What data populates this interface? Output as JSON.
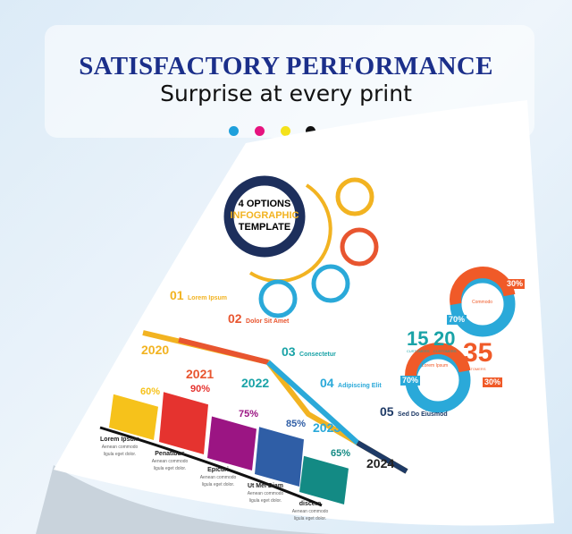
{
  "banner": {
    "title": "SATISFACTORY PERFORMANCE",
    "subtitle": "Surprise at every print",
    "ink_dots": [
      "#1ea0dc",
      "#e6137f",
      "#f4e21b",
      "#111111"
    ]
  },
  "infographic": {
    "badge": {
      "line1": "4 OPTIONS",
      "line2": "INFOGRAPHIC",
      "line3": "TEMPLATE"
    },
    "option_icons": [
      "magnifier-icon",
      "house-icon",
      "calendar-icon",
      "chart-icon"
    ],
    "timeline": [
      {
        "num": "01",
        "title": "Lorem Ipsum",
        "year": "2020",
        "color": "#f2b321"
      },
      {
        "num": "02",
        "title": "Dolor Sit Amet",
        "year": "2021",
        "color": "#e8552f"
      },
      {
        "num": "03",
        "title": "Consectetur",
        "year": "2022",
        "color": "#1aa3a7"
      },
      {
        "num": "04",
        "title": "Adipiscing Elit",
        "year": "2023",
        "color": "#2aa9d9"
      },
      {
        "num": "05",
        "title": "Sed Do Eiusmod",
        "year": "2024",
        "color": "#1e3a66"
      }
    ],
    "bars": [
      {
        "label": "Lorem Ipsum",
        "sub": "Aenean commodo ligula eget dolor.",
        "value": 60,
        "text": "60%",
        "color": "#f6c21b"
      },
      {
        "label": "Penatibus",
        "sub": "Aenean commodo ligula eget dolor.",
        "value": 90,
        "text": "90%",
        "color": "#e5332f"
      },
      {
        "label": "Epicuri",
        "sub": "Aenean commodo ligula eget dolor.",
        "value": 75,
        "text": "75%",
        "color": "#9b1583"
      },
      {
        "label": "Ut Mei Diam",
        "sub": "Aenean commodo ligula eget dolor.",
        "value": 85,
        "text": "85%",
        "color": "#2f5ea6"
      },
      {
        "label": "discere",
        "sub": "Aenean commodo ligula eget dolor.",
        "value": 65,
        "text": "65%",
        "color": "#138a84"
      }
    ],
    "donuts": [
      {
        "a": "70%",
        "b": "30%",
        "title": "Commodo"
      },
      {
        "a": "70%",
        "b": "30%",
        "title": "Lorem Ipsum"
      }
    ],
    "stats": [
      {
        "n": "15",
        "l": "CUSTOMERS"
      },
      {
        "n": "20",
        "l": "CUSTOMERS"
      },
      {
        "n": "35",
        "l": "CUSTOMERS"
      }
    ]
  }
}
